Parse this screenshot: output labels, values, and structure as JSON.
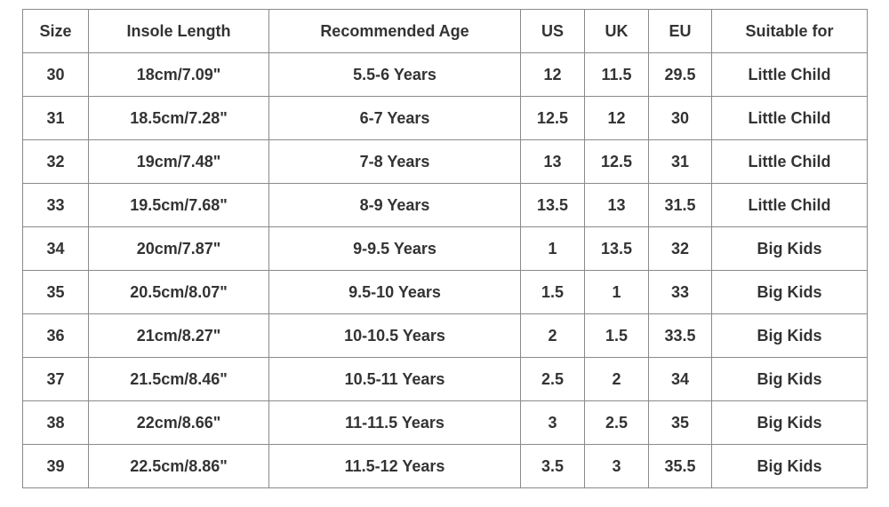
{
  "table": {
    "header": [
      "Size",
      "Insole Length",
      "Recommended Age",
      "US",
      "UK",
      "EU",
      "Suitable for"
    ],
    "rows": [
      [
        "30",
        "18cm/7.09\"",
        "5.5-6 Years",
        "12",
        "11.5",
        "29.5",
        "Little Child"
      ],
      [
        "31",
        "18.5cm/7.28\"",
        "6-7 Years",
        "12.5",
        "12",
        "30",
        "Little Child"
      ],
      [
        "32",
        "19cm/7.48\"",
        "7-8 Years",
        "13",
        "12.5",
        "31",
        "Little Child"
      ],
      [
        "33",
        "19.5cm/7.68\"",
        "8-9 Years",
        "13.5",
        "13",
        "31.5",
        "Little Child"
      ],
      [
        "34",
        "20cm/7.87\"",
        "9-9.5 Years",
        "1",
        "13.5",
        "32",
        "Big Kids"
      ],
      [
        "35",
        "20.5cm/8.07\"",
        "9.5-10 Years",
        "1.5",
        "1",
        "33",
        "Big Kids"
      ],
      [
        "36",
        "21cm/8.27\"",
        "10-10.5 Years",
        "2",
        "1.5",
        "33.5",
        "Big Kids"
      ],
      [
        "37",
        "21.5cm/8.46\"",
        "10.5-11 Years",
        "2.5",
        "2",
        "34",
        "Big Kids"
      ],
      [
        "38",
        "22cm/8.66\"",
        "11-11.5 Years",
        "3",
        "2.5",
        "35",
        "Big Kids"
      ],
      [
        "39",
        "22.5cm/8.86\"",
        "11.5-12 Years",
        "3.5",
        "3",
        "35.5",
        "Big Kids"
      ]
    ]
  }
}
